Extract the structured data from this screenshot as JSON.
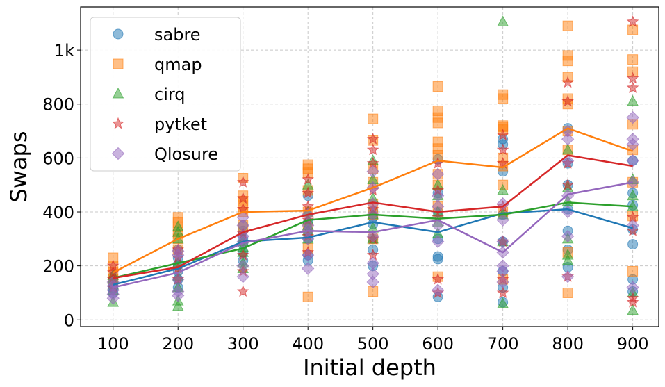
{
  "chart_data": {
    "type": "scatter",
    "title": "",
    "xlabel": "Initial depth",
    "ylabel": "Swaps",
    "xlim": [
      50,
      940
    ],
    "ylim": [
      -25,
      1160
    ],
    "x_ticks": [
      100,
      200,
      300,
      400,
      500,
      600,
      700,
      800,
      900
    ],
    "x_tick_labels": [
      "100",
      "200",
      "300",
      "400",
      "500",
      "600",
      "700",
      "800",
      "900"
    ],
    "y_ticks": [
      0,
      200,
      400,
      600,
      800,
      1000
    ],
    "y_tick_labels": [
      "0",
      "200",
      "400",
      "600",
      "800",
      "1k"
    ],
    "grid": true,
    "legend_position": "top-left",
    "x": [
      100,
      200,
      300,
      400,
      500,
      600,
      700,
      800,
      900
    ],
    "series": [
      {
        "name": "sabre",
        "marker": "circle",
        "color": "#1f77b4",
        "mean": [
          130,
          190,
          290,
          305,
          362,
          325,
          395,
          410,
          340
        ],
        "points": [
          [
            100,
            100
          ],
          [
            100,
            115
          ],
          [
            100,
            125
          ],
          [
            100,
            135
          ],
          [
            100,
            150
          ],
          [
            100,
            160
          ],
          [
            200,
            120
          ],
          [
            200,
            150
          ],
          [
            200,
            180
          ],
          [
            200,
            205
          ],
          [
            200,
            230
          ],
          [
            200,
            260
          ],
          [
            300,
            220
          ],
          [
            300,
            250
          ],
          [
            300,
            280
          ],
          [
            300,
            300
          ],
          [
            300,
            330
          ],
          [
            300,
            350
          ],
          [
            400,
            220
          ],
          [
            400,
            240
          ],
          [
            400,
            300
          ],
          [
            400,
            330
          ],
          [
            400,
            360
          ],
          [
            400,
            460
          ],
          [
            500,
            200
          ],
          [
            500,
            260
          ],
          [
            500,
            300
          ],
          [
            500,
            355
          ],
          [
            500,
            380
          ],
          [
            500,
            405
          ],
          [
            600,
            85
          ],
          [
            600,
            225
          ],
          [
            600,
            235
          ],
          [
            600,
            300
          ],
          [
            600,
            400
          ],
          [
            600,
            470
          ],
          [
            600,
            595
          ],
          [
            700,
            65
          ],
          [
            700,
            120
          ],
          [
            700,
            180
          ],
          [
            700,
            290
          ],
          [
            700,
            390
          ],
          [
            700,
            550
          ],
          [
            700,
            650
          ],
          [
            700,
            670
          ],
          [
            800,
            195
          ],
          [
            800,
            260
          ],
          [
            800,
            330
          ],
          [
            800,
            410
          ],
          [
            800,
            500
          ],
          [
            800,
            580
          ],
          [
            800,
            710
          ],
          [
            900,
            105
          ],
          [
            900,
            150
          ],
          [
            900,
            280
          ],
          [
            900,
            335
          ],
          [
            900,
            425
          ],
          [
            900,
            470
          ],
          [
            900,
            590
          ]
        ]
      },
      {
        "name": "qmap",
        "marker": "square",
        "color": "#ff7f0e",
        "mean": [
          175,
          300,
          400,
          405,
          490,
          590,
          565,
          710,
          625
        ],
        "points": [
          [
            100,
            150
          ],
          [
            100,
            175
          ],
          [
            100,
            200
          ],
          [
            100,
            230
          ],
          [
            200,
            260
          ],
          [
            200,
            300
          ],
          [
            200,
            320
          ],
          [
            200,
            345
          ],
          [
            200,
            360
          ],
          [
            200,
            380
          ],
          [
            300,
            350
          ],
          [
            300,
            400
          ],
          [
            300,
            420
          ],
          [
            300,
            440
          ],
          [
            300,
            460
          ],
          [
            300,
            525
          ],
          [
            400,
            85
          ],
          [
            400,
            265
          ],
          [
            400,
            340
          ],
          [
            400,
            400
          ],
          [
            400,
            480
          ],
          [
            400,
            545
          ],
          [
            400,
            560
          ],
          [
            400,
            575
          ],
          [
            500,
            105
          ],
          [
            500,
            300
          ],
          [
            500,
            390
          ],
          [
            500,
            430
          ],
          [
            500,
            510
          ],
          [
            500,
            560
          ],
          [
            500,
            665
          ],
          [
            500,
            745
          ],
          [
            600,
            160
          ],
          [
            600,
            420
          ],
          [
            600,
            500
          ],
          [
            600,
            540
          ],
          [
            600,
            610
          ],
          [
            600,
            635
          ],
          [
            600,
            660
          ],
          [
            600,
            730
          ],
          [
            600,
            750
          ],
          [
            600,
            775
          ],
          [
            600,
            865
          ],
          [
            700,
            150
          ],
          [
            700,
            400
          ],
          [
            700,
            500
          ],
          [
            700,
            570
          ],
          [
            700,
            600
          ],
          [
            700,
            705
          ],
          [
            700,
            715
          ],
          [
            700,
            720
          ],
          [
            700,
            820
          ],
          [
            700,
            835
          ],
          [
            800,
            100
          ],
          [
            800,
            250
          ],
          [
            800,
            630
          ],
          [
            800,
            700
          ],
          [
            800,
            800
          ],
          [
            800,
            820
          ],
          [
            800,
            900
          ],
          [
            800,
            960
          ],
          [
            800,
            980
          ],
          [
            800,
            1090
          ],
          [
            900,
            180
          ],
          [
            900,
            385
          ],
          [
            900,
            510
          ],
          [
            900,
            630
          ],
          [
            900,
            725
          ],
          [
            900,
            920
          ],
          [
            900,
            965
          ],
          [
            900,
            1075
          ]
        ]
      },
      {
        "name": "cirq",
        "marker": "triangle",
        "color": "#2ca02c",
        "mean": [
          155,
          210,
          265,
          370,
          390,
          375,
          390,
          435,
          420
        ],
        "points": [
          [
            100,
            65
          ],
          [
            100,
            110
          ],
          [
            100,
            130
          ],
          [
            100,
            150
          ],
          [
            100,
            165
          ],
          [
            200,
            50
          ],
          [
            200,
            70
          ],
          [
            200,
            120
          ],
          [
            200,
            160
          ],
          [
            200,
            210
          ],
          [
            200,
            300
          ],
          [
            200,
            325
          ],
          [
            200,
            345
          ],
          [
            300,
            190
          ],
          [
            300,
            210
          ],
          [
            300,
            250
          ],
          [
            300,
            270
          ],
          [
            300,
            290
          ],
          [
            300,
            300
          ],
          [
            400,
            300
          ],
          [
            400,
            330
          ],
          [
            400,
            350
          ],
          [
            400,
            370
          ],
          [
            400,
            400
          ],
          [
            400,
            500
          ],
          [
            500,
            300
          ],
          [
            500,
            340
          ],
          [
            500,
            390
          ],
          [
            500,
            450
          ],
          [
            500,
            520
          ],
          [
            500,
            590
          ],
          [
            600,
            320
          ],
          [
            600,
            360
          ],
          [
            600,
            400
          ],
          [
            600,
            460
          ],
          [
            600,
            500
          ],
          [
            700,
            60
          ],
          [
            700,
            290
          ],
          [
            700,
            390
          ],
          [
            700,
            480
          ],
          [
            700,
            1105
          ],
          [
            800,
            220
          ],
          [
            800,
            240
          ],
          [
            800,
            300
          ],
          [
            800,
            440
          ],
          [
            800,
            490
          ],
          [
            800,
            630
          ],
          [
            900,
            35
          ],
          [
            900,
            100
          ],
          [
            900,
            420
          ],
          [
            900,
            460
          ],
          [
            900,
            520
          ],
          [
            900,
            810
          ]
        ]
      },
      {
        "name": "pytket",
        "marker": "star",
        "color": "#d62728",
        "mean": [
          155,
          195,
          325,
          390,
          435,
          400,
          420,
          610,
          570
        ],
        "points": [
          [
            100,
            120
          ],
          [
            100,
            150
          ],
          [
            100,
            175
          ],
          [
            100,
            200
          ],
          [
            200,
            150
          ],
          [
            200,
            190
          ],
          [
            200,
            230
          ],
          [
            200,
            260
          ],
          [
            300,
            105
          ],
          [
            300,
            180
          ],
          [
            300,
            240
          ],
          [
            300,
            320
          ],
          [
            300,
            410
          ],
          [
            300,
            450
          ],
          [
            300,
            510
          ],
          [
            400,
            250
          ],
          [
            400,
            310
          ],
          [
            400,
            370
          ],
          [
            400,
            420
          ],
          [
            400,
            470
          ],
          [
            400,
            520
          ],
          [
            500,
            240
          ],
          [
            500,
            300
          ],
          [
            500,
            410
          ],
          [
            500,
            480
          ],
          [
            500,
            580
          ],
          [
            500,
            630
          ],
          [
            500,
            670
          ],
          [
            600,
            100
          ],
          [
            600,
            150
          ],
          [
            600,
            380
          ],
          [
            600,
            480
          ],
          [
            600,
            580
          ],
          [
            700,
            100
          ],
          [
            700,
            150
          ],
          [
            700,
            290
          ],
          [
            700,
            420
          ],
          [
            700,
            580
          ],
          [
            700,
            630
          ],
          [
            700,
            685
          ],
          [
            800,
            160
          ],
          [
            800,
            500
          ],
          [
            800,
            580
          ],
          [
            800,
            810
          ],
          [
            800,
            880
          ],
          [
            900,
            65
          ],
          [
            900,
            80
          ],
          [
            900,
            330
          ],
          [
            900,
            380
          ],
          [
            900,
            860
          ],
          [
            900,
            895
          ],
          [
            900,
            1105
          ]
        ]
      },
      {
        "name": "Qlosure",
        "marker": "diamond",
        "color": "#9467bd",
        "mean": [
          120,
          175,
          285,
          330,
          325,
          370,
          250,
          465,
          510
        ],
        "points": [
          [
            100,
            80
          ],
          [
            100,
            95
          ],
          [
            100,
            110
          ],
          [
            100,
            125
          ],
          [
            100,
            140
          ],
          [
            200,
            90
          ],
          [
            200,
            105
          ],
          [
            200,
            150
          ],
          [
            200,
            240
          ],
          [
            200,
            255
          ],
          [
            300,
            160
          ],
          [
            300,
            200
          ],
          [
            300,
            290
          ],
          [
            300,
            310
          ],
          [
            300,
            350
          ],
          [
            300,
            380
          ],
          [
            400,
            190
          ],
          [
            400,
            240
          ],
          [
            400,
            300
          ],
          [
            400,
            330
          ],
          [
            400,
            350
          ],
          [
            400,
            390
          ],
          [
            500,
            140
          ],
          [
            500,
            170
          ],
          [
            500,
            210
          ],
          [
            500,
            310
          ],
          [
            500,
            390
          ],
          [
            500,
            430
          ],
          [
            500,
            490
          ],
          [
            500,
            550
          ],
          [
            600,
            110
          ],
          [
            600,
            290
          ],
          [
            600,
            350
          ],
          [
            600,
            420
          ],
          [
            600,
            460
          ],
          [
            600,
            540
          ],
          [
            700,
            140
          ],
          [
            700,
            180
          ],
          [
            700,
            200
          ],
          [
            700,
            250
          ],
          [
            700,
            290
          ],
          [
            700,
            370
          ],
          [
            700,
            430
          ],
          [
            800,
            160
          ],
          [
            800,
            310
          ],
          [
            800,
            400
          ],
          [
            800,
            460
          ],
          [
            800,
            590
          ],
          [
            800,
            670
          ],
          [
            800,
            700
          ],
          [
            900,
            120
          ],
          [
            900,
            350
          ],
          [
            900,
            510
          ],
          [
            900,
            590
          ],
          [
            900,
            650
          ],
          [
            900,
            670
          ],
          [
            900,
            750
          ]
        ]
      }
    ]
  }
}
